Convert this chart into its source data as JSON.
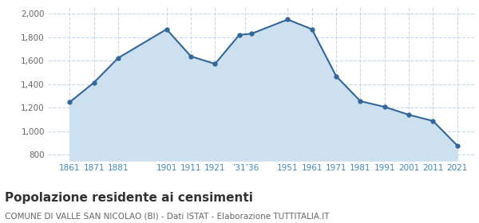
{
  "years": [
    1861,
    1871,
    1881,
    1901,
    1911,
    1921,
    1931,
    1936,
    1951,
    1961,
    1971,
    1981,
    1991,
    2001,
    2011,
    2021
  ],
  "population": [
    1247,
    1414,
    1623,
    1868,
    1638,
    1573,
    1820,
    1830,
    1951,
    1868,
    1469,
    1256,
    1207,
    1140,
    1087,
    878
  ],
  "line_color": "#336699",
  "fill_color": "#cce0f0",
  "marker_color": "#336699",
  "background_color": "#ffffff",
  "grid_color": "#c8d8e8",
  "ylim": [
    750,
    2060
  ],
  "yticks": [
    800,
    1000,
    1200,
    1400,
    1600,
    1800,
    2000
  ],
  "title": "Popolazione residente ai censimenti",
  "subtitle": "COMUNE DI VALLE SAN NICOLAO (BI) - Dati ISTAT - Elaborazione TUTTITALIA.IT",
  "title_fontsize": 11,
  "subtitle_fontsize": 7.5,
  "tick_label_color": "#4488bb",
  "tick_label_fontsize": 7.5,
  "ytick_label_color": "#666666",
  "xlim": [
    1852,
    2028
  ]
}
